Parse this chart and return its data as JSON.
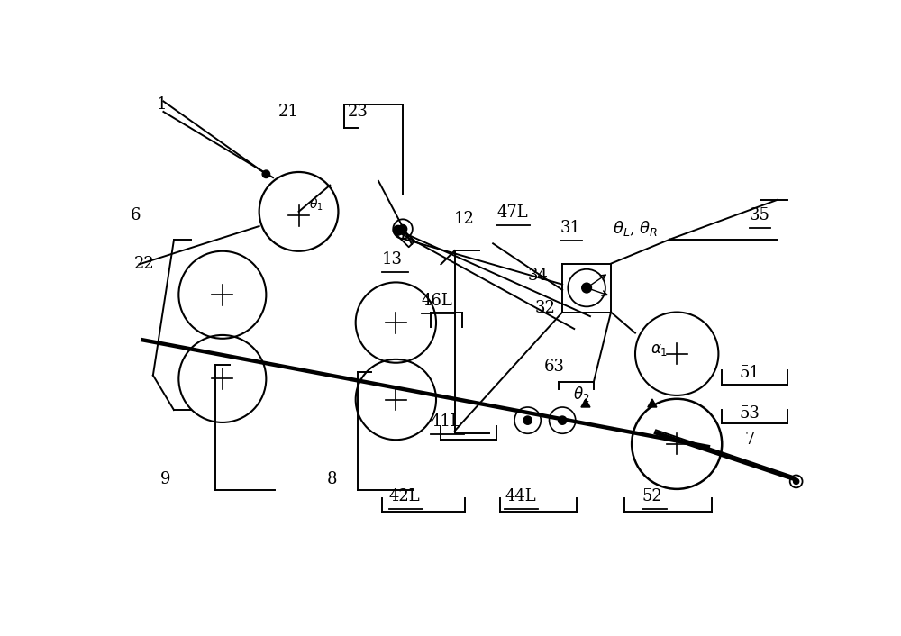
{
  "bg_color": "#ffffff",
  "line_color": "#000000",
  "figsize": [
    10.0,
    7.06
  ],
  "dpi": 100,
  "xlim": [
    0,
    10
  ],
  "ylim": [
    0,
    7.06
  ]
}
